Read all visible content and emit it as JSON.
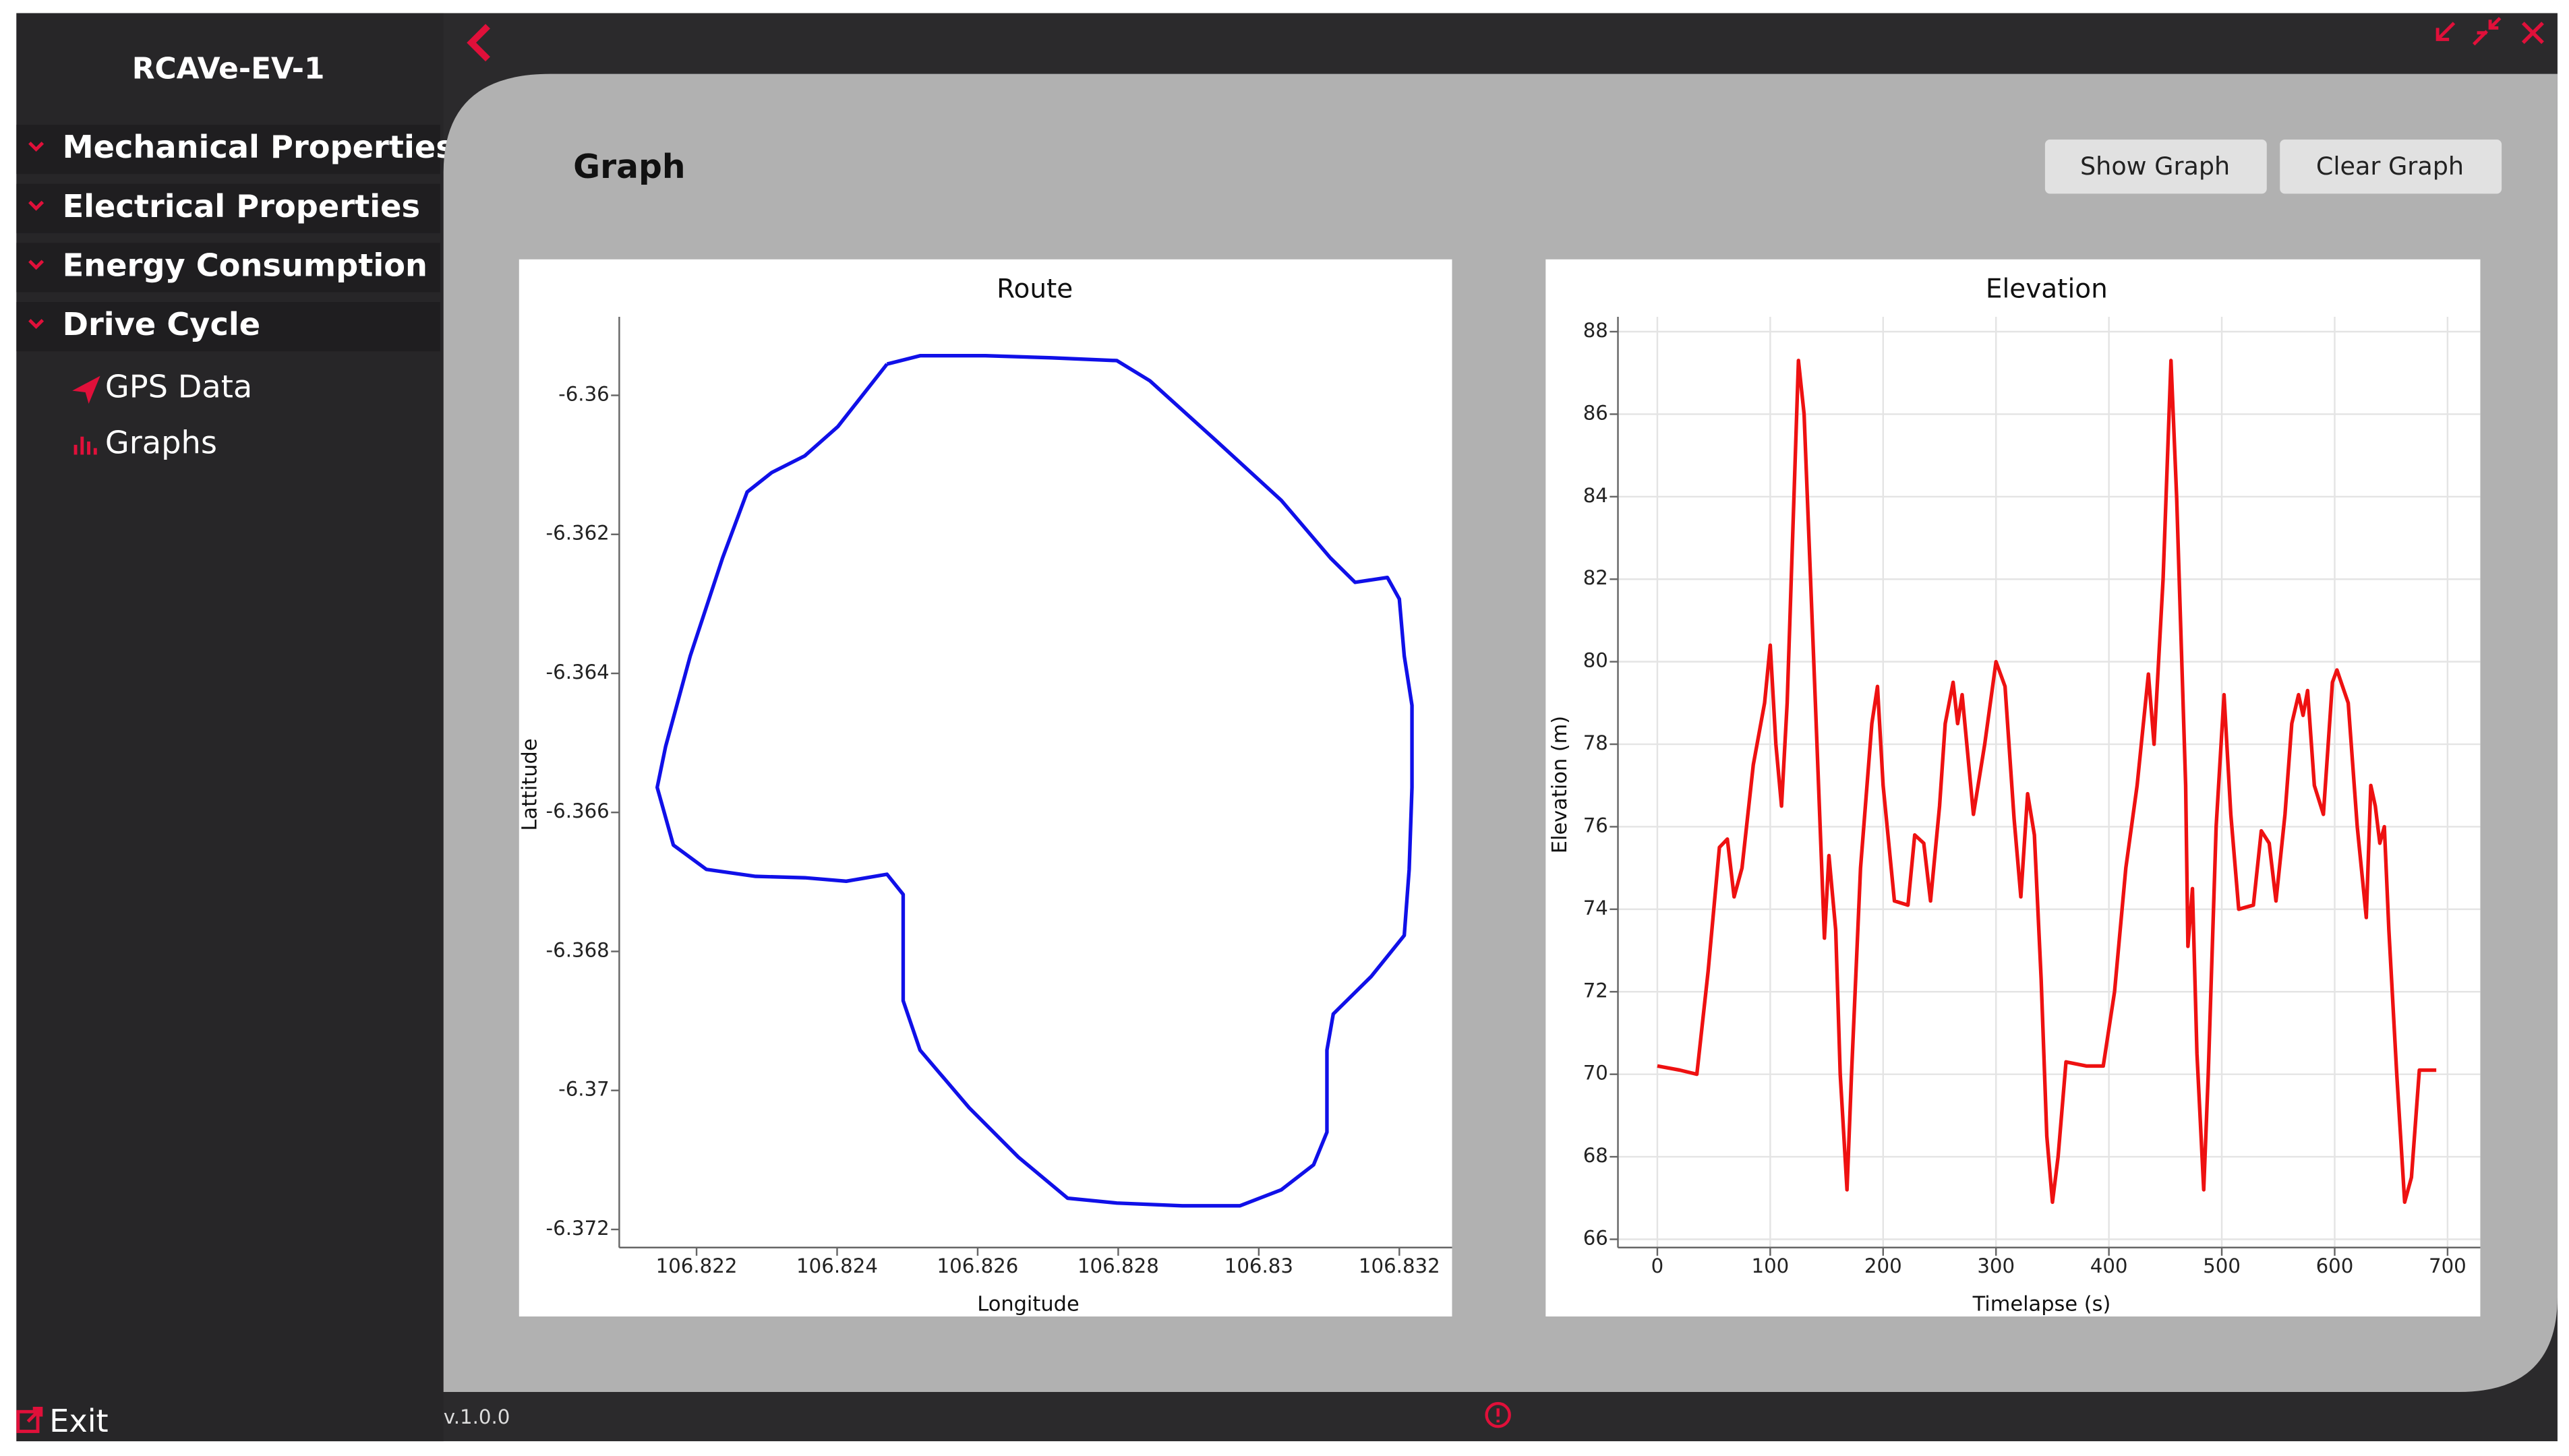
{
  "app": {
    "title": "RCAVe-EV-1",
    "menu": [
      "Mechanical Properties",
      "Electrical Properties",
      "Energy Consumption",
      "Drive Cycle"
    ],
    "submenu": [
      "GPS Data",
      "Graphs"
    ],
    "exit": "Exit",
    "version": "v.1.0.0"
  },
  "page": {
    "heading": "Graph",
    "buttons": [
      "Show Graph",
      "Clear Graph"
    ]
  },
  "chart_data": [
    {
      "type": "line",
      "title": "Route",
      "x_label": "Longitude",
      "y_label": "Lattitude",
      "color": "#1010e8",
      "grid": false,
      "x": [
        106.82471,
        106.82518,
        106.82611,
        106.82705,
        106.82798,
        106.82845,
        106.82938,
        106.83032,
        106.83102,
        106.83137,
        106.83183,
        106.832,
        106.83207,
        106.83218,
        106.83218,
        106.83214,
        106.83207,
        106.8316,
        106.83106,
        106.83097,
        106.83097,
        106.83078,
        106.83032,
        106.82973,
        106.82891,
        106.82798,
        106.82728,
        106.82658,
        106.82588,
        106.82518,
        106.82494,
        106.82494,
        106.82471,
        106.82413,
        106.82354,
        106.82284,
        106.82214,
        106.82167,
        106.82144,
        106.82156,
        106.82191,
        106.82237,
        106.82272,
        106.82307,
        106.82354,
        106.82401,
        106.82471
      ],
      "values": [
        -6.35955,
        -6.35943,
        -6.35943,
        -6.35946,
        -6.3595,
        -6.35979,
        -6.36064,
        -6.36151,
        -6.36234,
        -6.36269,
        -6.36262,
        -6.36293,
        -6.36375,
        -6.36446,
        -6.36564,
        -6.36682,
        -6.36777,
        -6.36836,
        -6.3689,
        -6.36942,
        -6.3706,
        -6.37107,
        -6.37143,
        -6.37166,
        -6.37166,
        -6.37162,
        -6.37155,
        -6.37096,
        -6.37025,
        -6.36942,
        -6.36871,
        -6.36718,
        -6.36689,
        -6.36699,
        -6.36694,
        -6.36692,
        -6.36682,
        -6.36647,
        -6.36564,
        -6.36505,
        -6.36375,
        -6.36234,
        -6.36139,
        -6.36111,
        -6.36087,
        -6.36045,
        -6.35955
      ],
      "xlim": [
        106.8209,
        106.83275
      ],
      "xticks": [
        106.822,
        106.824,
        106.826,
        106.828,
        106.83,
        106.832
      ],
      "ylim": [
        -6.37226,
        -6.35887
      ],
      "yticks": [
        -6.36,
        -6.362,
        -6.364,
        -6.366,
        -6.368,
        -6.37,
        -6.372
      ]
    },
    {
      "type": "line",
      "title": "Elevation",
      "x_label": "Timelapse (s)",
      "y_label": "Elevation (m)",
      "color": "#ee1111",
      "grid": true,
      "x": [
        0,
        20,
        35,
        45,
        55,
        62,
        68,
        75,
        85,
        95,
        100,
        105,
        110,
        115,
        125,
        130,
        140,
        148,
        152,
        158,
        162,
        168,
        172,
        180,
        190,
        195,
        200,
        210,
        222,
        228,
        236,
        242,
        250,
        255,
        262,
        266,
        270,
        280,
        290,
        300,
        308,
        316,
        322,
        328,
        334,
        340,
        345,
        350,
        355,
        362,
        380,
        395,
        405,
        415,
        425,
        435,
        440,
        448,
        455,
        460,
        468,
        470,
        474,
        478,
        484,
        488,
        495,
        502,
        508,
        515,
        528,
        535,
        542,
        548,
        556,
        562,
        568,
        572,
        576,
        582,
        590,
        598,
        602,
        612,
        620,
        628,
        632,
        636,
        640,
        644,
        648,
        655,
        662,
        668,
        675,
        690
      ],
      "values": [
        70.2,
        70.1,
        70.0,
        72.5,
        75.5,
        75.7,
        74.3,
        75,
        77.5,
        79,
        80.4,
        78,
        76.5,
        79,
        87.3,
        86,
        79,
        73.3,
        75.3,
        73.5,
        70,
        67.2,
        70,
        75,
        78.5,
        79.4,
        77,
        74.2,
        74.1,
        75.8,
        75.6,
        74.2,
        76.5,
        78.5,
        79.5,
        78.5,
        79.2,
        76.3,
        78,
        80,
        79.4,
        76.2,
        74.3,
        76.8,
        75.8,
        72.3,
        68.5,
        66.9,
        68,
        70.3,
        70.2,
        70.2,
        72,
        75,
        77,
        79.7,
        78,
        82,
        87.3,
        84,
        77,
        73.1,
        74.5,
        70.5,
        67.2,
        70,
        76,
        79.2,
        76.3,
        74,
        74.1,
        75.9,
        75.6,
        74.2,
        76.3,
        78.5,
        79.2,
        78.7,
        79.3,
        77,
        76.3,
        79.5,
        79.8,
        79,
        76,
        73.8,
        77,
        76.5,
        75.6,
        76,
        73.5,
        70,
        66.9,
        67.5,
        70.1,
        70.1
      ],
      "xlim": [
        -34.9,
        729
      ],
      "xticks": [
        0,
        100,
        200,
        300,
        400,
        500,
        600,
        700
      ],
      "ylim": [
        65.8,
        88.36
      ],
      "yticks": [
        66,
        68,
        70,
        72,
        74,
        76,
        78,
        80,
        82,
        84,
        86,
        88
      ]
    }
  ]
}
